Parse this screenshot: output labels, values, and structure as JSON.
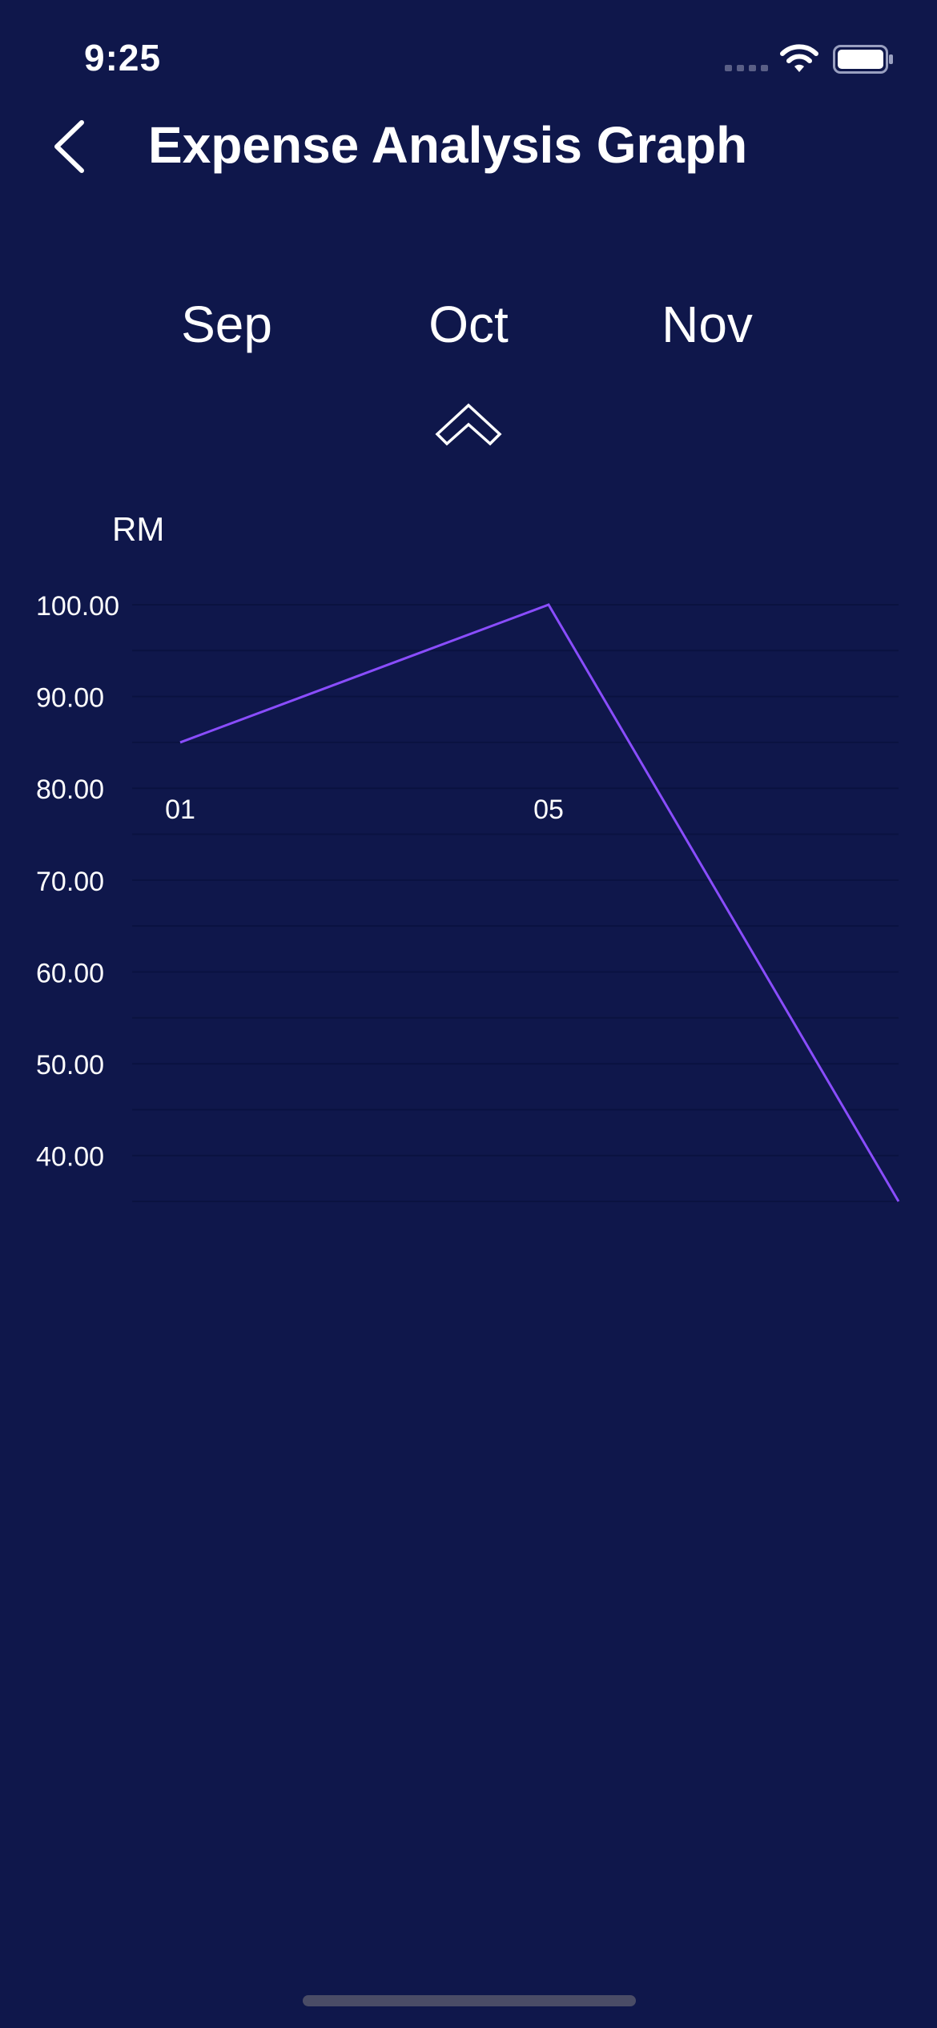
{
  "status_bar": {
    "time": "9:25"
  },
  "header": {
    "title": "Expense Analysis Graph",
    "back_icon": "chevron-left-icon"
  },
  "month_selector": {
    "prev": "Sep",
    "current": "Oct",
    "next": "Nov",
    "toggle_icon": "chevron-up-icon"
  },
  "colors": {
    "background": "#0f174b",
    "line": "#8a4dff",
    "grid": "#0a1240",
    "text": "#ffffff"
  },
  "chart_data": {
    "type": "line",
    "ylabel": "RM",
    "x": [
      "01",
      "05",
      ""
    ],
    "y_tick_labels": [
      "100.00",
      "90.00",
      "80.00",
      "70.00",
      "60.00",
      "50.00",
      "40.00"
    ],
    "ylim": [
      35,
      100
    ],
    "series": [
      {
        "values": [
          85,
          100,
          35
        ]
      }
    ],
    "grid": true
  }
}
